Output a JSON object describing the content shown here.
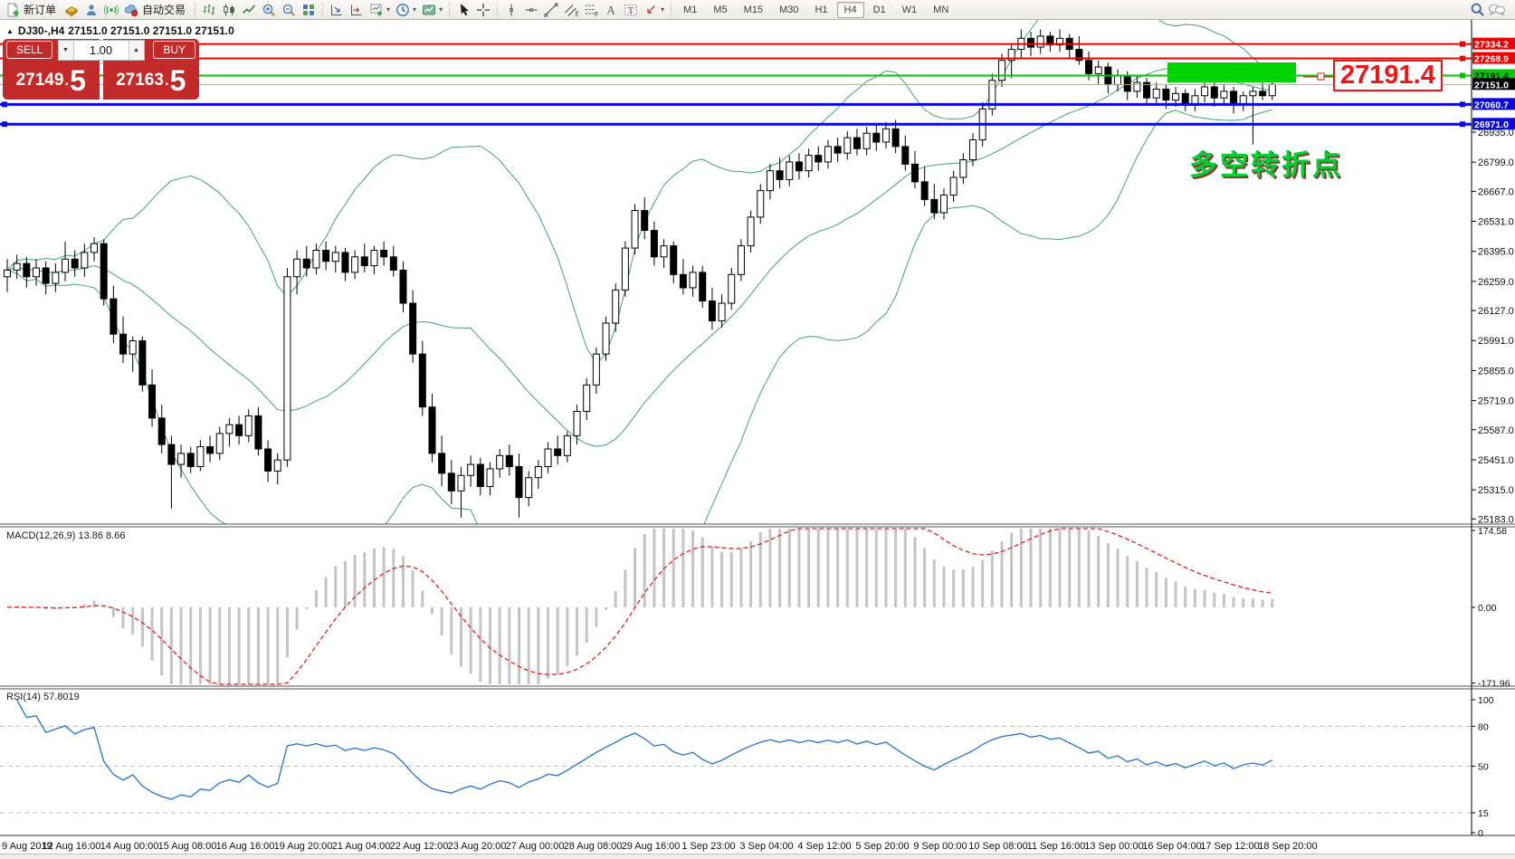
{
  "toolbar": {
    "new_order_label": "新订单",
    "autotrading_label": "自动交易",
    "timeframes": [
      "M1",
      "M5",
      "M15",
      "M30",
      "H1",
      "H4",
      "D1",
      "W1",
      "MN"
    ],
    "active_timeframe": "H4"
  },
  "chart_header": {
    "symbol_period": "DJ30-,H4",
    "quotes": "27151.0 27151.0 27151.0 27151.0"
  },
  "trade_panel": {
    "sell_label": "SELL",
    "buy_label": "BUY",
    "volume": "1.00",
    "price_separator": ".",
    "sell_price_int": "27149",
    "sell_price_frac": "5",
    "buy_price_int": "27163",
    "buy_price_frac": "5"
  },
  "annotations": {
    "price_callout": "27191.4",
    "turning_point": "多空转折点"
  },
  "chart_data": {
    "type": "candlestick",
    "symbol": "DJ30-",
    "timeframe": "H4",
    "current_price": {
      "label": "27151.0",
      "line_color": "#a9a9a9",
      "label_bg": "#000000",
      "label_fg": "#ffffff"
    },
    "horizontal_lines": [
      {
        "price": "27334.2",
        "color": "#ee0000",
        "width": 2,
        "label_fg": "#ffffff"
      },
      {
        "price": "27268.9",
        "color": "#ee0000",
        "width": 2,
        "label_fg": "#ffffff"
      },
      {
        "price": "27191.4",
        "color": "#00c800",
        "width": 2,
        "label_fg": "#000000"
      },
      {
        "price": "27060.7",
        "color": "#0a0ae0",
        "width": 3,
        "label_fg": "#ffffff"
      },
      {
        "price": "26971.0",
        "color": "#0a0ae0",
        "width": 3,
        "label_fg": "#ffffff"
      }
    ],
    "highlight_rect_color": "#00d400",
    "price_axis": {
      "ticks": [
        "26935.0",
        "26799.0",
        "26667.0",
        "26531.0",
        "26395.0",
        "26259.0",
        "26127.0",
        "25991.0",
        "25855.0",
        "25719.0",
        "25587.0",
        "25451.0",
        "25315.0",
        "25183.0"
      ]
    },
    "time_axis": [
      "9 Aug 2019",
      "12 Aug 16:00",
      "14 Aug 00:00",
      "15 Aug 08:00",
      "16 Aug 16:00",
      "19 Aug 20:00",
      "21 Aug 04:00",
      "22 Aug 12:00",
      "23 Aug 20:00",
      "27 Aug 00:00",
      "28 Aug 08:00",
      "29 Aug 16:00",
      "1 Sep 23:00",
      "3 Sep 04:00",
      "4 Sep 12:00",
      "5 Sep 20:00",
      "9 Sep 00:00",
      "10 Sep 08:00",
      "11 Sep 16:00",
      "13 Sep 00:00",
      "16 Sep 04:00",
      "17 Sep 12:00",
      "18 Sep 20:00"
    ],
    "bollinger": {
      "period": 20,
      "deviation": 2,
      "color": "#43a273"
    },
    "indicators": {
      "macd": {
        "label": "MACD(12,26,9) 13.86 8.66",
        "params": [
          12,
          26,
          9
        ],
        "value_main": 13.86,
        "value_signal": 8.66,
        "scale": [
          "174.58",
          "0.00",
          "-171.96"
        ],
        "histogram_color": "#c4c4c4",
        "signal_color": "#e31e1e"
      },
      "rsi": {
        "label": "RSI(14) 57.8019",
        "period": 14,
        "value": 57.8019,
        "levels": [
          80,
          50,
          15
        ],
        "scale_labels": [
          "100",
          "80",
          "50",
          "15",
          "0"
        ],
        "color": "#2f7bd3"
      }
    },
    "candles": [
      [
        26280,
        26360,
        26210,
        26310
      ],
      [
        26310,
        26380,
        26270,
        26340
      ],
      [
        26340,
        26370,
        26230,
        26280
      ],
      [
        26280,
        26360,
        26240,
        26320
      ],
      [
        26320,
        26350,
        26200,
        26250
      ],
      [
        26250,
        26340,
        26210,
        26300
      ],
      [
        26300,
        26440,
        26260,
        26360
      ],
      [
        26360,
        26400,
        26280,
        26320
      ],
      [
        26320,
        26430,
        26280,
        26390
      ],
      [
        26390,
        26460,
        26350,
        26430
      ],
      [
        26430,
        26450,
        26150,
        26180
      ],
      [
        26180,
        26240,
        25980,
        26020
      ],
      [
        26020,
        26100,
        25890,
        25930
      ],
      [
        25930,
        26010,
        25850,
        25990
      ],
      [
        25990,
        26010,
        25760,
        25790
      ],
      [
        25790,
        25860,
        25600,
        25640
      ],
      [
        25640,
        25700,
        25480,
        25520
      ],
      [
        25520,
        25560,
        25230,
        25430
      ],
      [
        25430,
        25520,
        25370,
        25480
      ],
      [
        25480,
        25510,
        25390,
        25420
      ],
      [
        25420,
        25540,
        25400,
        25510
      ],
      [
        25510,
        25560,
        25440,
        25480
      ],
      [
        25480,
        25600,
        25450,
        25570
      ],
      [
        25570,
        25640,
        25510,
        25610
      ],
      [
        25610,
        25650,
        25520,
        25560
      ],
      [
        25560,
        25680,
        25530,
        25650
      ],
      [
        25650,
        25690,
        25470,
        25500
      ],
      [
        25500,
        25540,
        25350,
        25400
      ],
      [
        25400,
        25480,
        25340,
        25450
      ],
      [
        25450,
        26320,
        25420,
        26280
      ],
      [
        26280,
        26400,
        26200,
        26360
      ],
      [
        26360,
        26420,
        26280,
        26320
      ],
      [
        26320,
        26430,
        26290,
        26400
      ],
      [
        26400,
        26440,
        26310,
        26350
      ],
      [
        26350,
        26420,
        26300,
        26390
      ],
      [
        26390,
        26410,
        26260,
        26300
      ],
      [
        26300,
        26400,
        26270,
        26370
      ],
      [
        26370,
        26430,
        26300,
        26330
      ],
      [
        26330,
        26420,
        26290,
        26400
      ],
      [
        26400,
        26440,
        26330,
        26370
      ],
      [
        26370,
        26420,
        26280,
        26310
      ],
      [
        26310,
        26350,
        26120,
        26160
      ],
      [
        26160,
        26220,
        25890,
        25930
      ],
      [
        25930,
        25990,
        25650,
        25690
      ],
      [
        25690,
        25750,
        25440,
        25480
      ],
      [
        25480,
        25560,
        25330,
        25390
      ],
      [
        25390,
        25450,
        25250,
        25310
      ],
      [
        25310,
        25420,
        25190,
        25380
      ],
      [
        25380,
        25470,
        25330,
        25430
      ],
      [
        25430,
        25460,
        25290,
        25330
      ],
      [
        25330,
        25440,
        25290,
        25410
      ],
      [
        25410,
        25500,
        25370,
        25470
      ],
      [
        25470,
        25520,
        25380,
        25420
      ],
      [
        25420,
        25480,
        25190,
        25280
      ],
      [
        25280,
        25400,
        25240,
        25370
      ],
      [
        25370,
        25450,
        25320,
        25420
      ],
      [
        25420,
        25530,
        25390,
        25500
      ],
      [
        25500,
        25560,
        25430,
        25470
      ],
      [
        25470,
        25580,
        25440,
        25560
      ],
      [
        25560,
        25700,
        25520,
        25670
      ],
      [
        25670,
        25820,
        25630,
        25790
      ],
      [
        25790,
        25960,
        25750,
        25930
      ],
      [
        25930,
        26100,
        25900,
        26070
      ],
      [
        26070,
        26250,
        26030,
        26220
      ],
      [
        26220,
        26440,
        26190,
        26410
      ],
      [
        26410,
        26610,
        26380,
        26580
      ],
      [
        26580,
        26640,
        26450,
        26490
      ],
      [
        26490,
        26530,
        26330,
        26370
      ],
      [
        26370,
        26450,
        26320,
        26420
      ],
      [
        26420,
        26440,
        26250,
        26290
      ],
      [
        26290,
        26360,
        26200,
        26230
      ],
      [
        26230,
        26330,
        26190,
        26300
      ],
      [
        26300,
        26330,
        26140,
        26170
      ],
      [
        26170,
        26230,
        26040,
        26080
      ],
      [
        26080,
        26200,
        26050,
        26160
      ],
      [
        26160,
        26320,
        26130,
        26290
      ],
      [
        26290,
        26450,
        26260,
        26420
      ],
      [
        26420,
        26580,
        26390,
        26550
      ],
      [
        26550,
        26700,
        26520,
        26670
      ],
      [
        26670,
        26790,
        26630,
        26760
      ],
      [
        26760,
        26820,
        26680,
        26720
      ],
      [
        26720,
        26830,
        26690,
        26800
      ],
      [
        26800,
        26840,
        26720,
        26760
      ],
      [
        26760,
        26860,
        26730,
        26830
      ],
      [
        26830,
        26870,
        26760,
        26800
      ],
      [
        26800,
        26900,
        26770,
        26870
      ],
      [
        26870,
        26910,
        26800,
        26840
      ],
      [
        26840,
        26940,
        26810,
        26910
      ],
      [
        26910,
        26950,
        26830,
        26860
      ],
      [
        26860,
        26960,
        26830,
        26930
      ],
      [
        26930,
        26970,
        26850,
        26890
      ],
      [
        26890,
        26980,
        26860,
        26950
      ],
      [
        26950,
        26990,
        26840,
        26870
      ],
      [
        26870,
        26920,
        26760,
        26790
      ],
      [
        26790,
        26850,
        26680,
        26710
      ],
      [
        26710,
        26780,
        26600,
        26630
      ],
      [
        26630,
        26700,
        26540,
        26570
      ],
      [
        26570,
        26680,
        26540,
        26650
      ],
      [
        26650,
        26760,
        26620,
        26730
      ],
      [
        26730,
        26840,
        26700,
        26810
      ],
      [
        26810,
        26930,
        26780,
        26900
      ],
      [
        26900,
        27070,
        26870,
        27040
      ],
      [
        27040,
        27200,
        27010,
        27170
      ],
      [
        27170,
        27290,
        27140,
        27260
      ],
      [
        27260,
        27330,
        27180,
        27310
      ],
      [
        27310,
        27400,
        27270,
        27360
      ],
      [
        27360,
        27390,
        27280,
        27320
      ],
      [
        27320,
        27400,
        27290,
        27370
      ],
      [
        27370,
        27390,
        27300,
        27330
      ],
      [
        27330,
        27400,
        27300,
        27360
      ],
      [
        27360,
        27380,
        27270,
        27310
      ],
      [
        27310,
        27370,
        27240,
        27260
      ],
      [
        27260,
        27300,
        27170,
        27200
      ],
      [
        27200,
        27260,
        27150,
        27230
      ],
      [
        27230,
        27250,
        27110,
        27150
      ],
      [
        27150,
        27220,
        27120,
        27190
      ],
      [
        27190,
        27210,
        27080,
        27120
      ],
      [
        27120,
        27190,
        27090,
        27160
      ],
      [
        27160,
        27180,
        27060,
        27090
      ],
      [
        27090,
        27160,
        27060,
        27130
      ],
      [
        27130,
        27150,
        27040,
        27080
      ],
      [
        27080,
        27140,
        27050,
        27110
      ],
      [
        27110,
        27130,
        27030,
        27060
      ],
      [
        27060,
        27130,
        27030,
        27100
      ],
      [
        27100,
        27170,
        27070,
        27140
      ],
      [
        27140,
        27160,
        27050,
        27090
      ],
      [
        27090,
        27150,
        27060,
        27120
      ],
      [
        27120,
        27140,
        27020,
        27060
      ],
      [
        27060,
        27120,
        27030,
        27100
      ],
      [
        27100,
        27140,
        26880,
        27120
      ],
      [
        27120,
        27160,
        27080,
        27100
      ],
      [
        27100,
        27170,
        27080,
        27151
      ]
    ]
  }
}
